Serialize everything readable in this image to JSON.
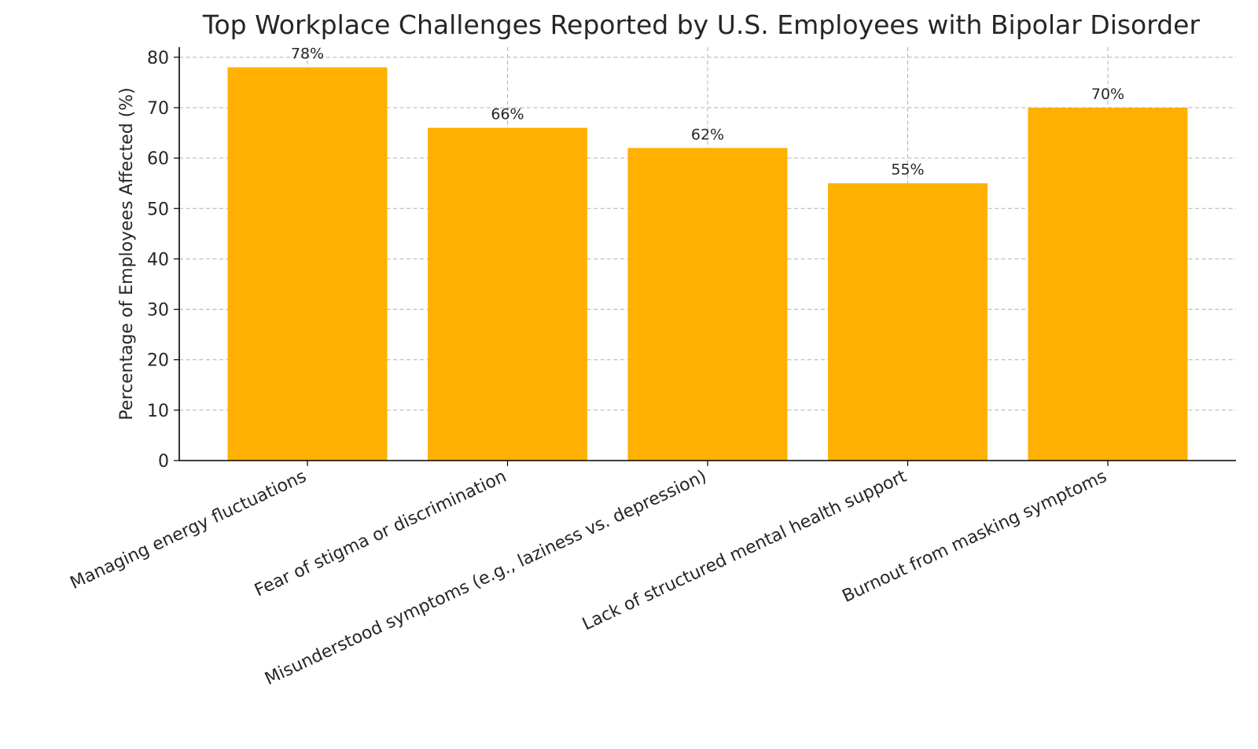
{
  "chart_data": {
    "type": "bar",
    "title": "Top Workplace Challenges Reported by U.S. Employees with Bipolar Disorder",
    "xlabel": "",
    "ylabel": "Percentage of Employees Affected (%)",
    "categories": [
      "Managing energy fluctuations",
      "Fear of stigma or discrimination",
      "Misunderstood symptoms (e.g., laziness vs. depression)",
      "Lack of structured mental health support",
      "Burnout from masking symptoms"
    ],
    "values": [
      78,
      66,
      62,
      55,
      70
    ],
    "data_labels": [
      "78%",
      "66%",
      "62%",
      "55%",
      "70%"
    ],
    "ylim": [
      0,
      82
    ],
    "yticks": [
      0,
      10,
      20,
      30,
      40,
      50,
      60,
      70,
      80
    ],
    "grid": true,
    "bar_color": "#FFB000"
  }
}
